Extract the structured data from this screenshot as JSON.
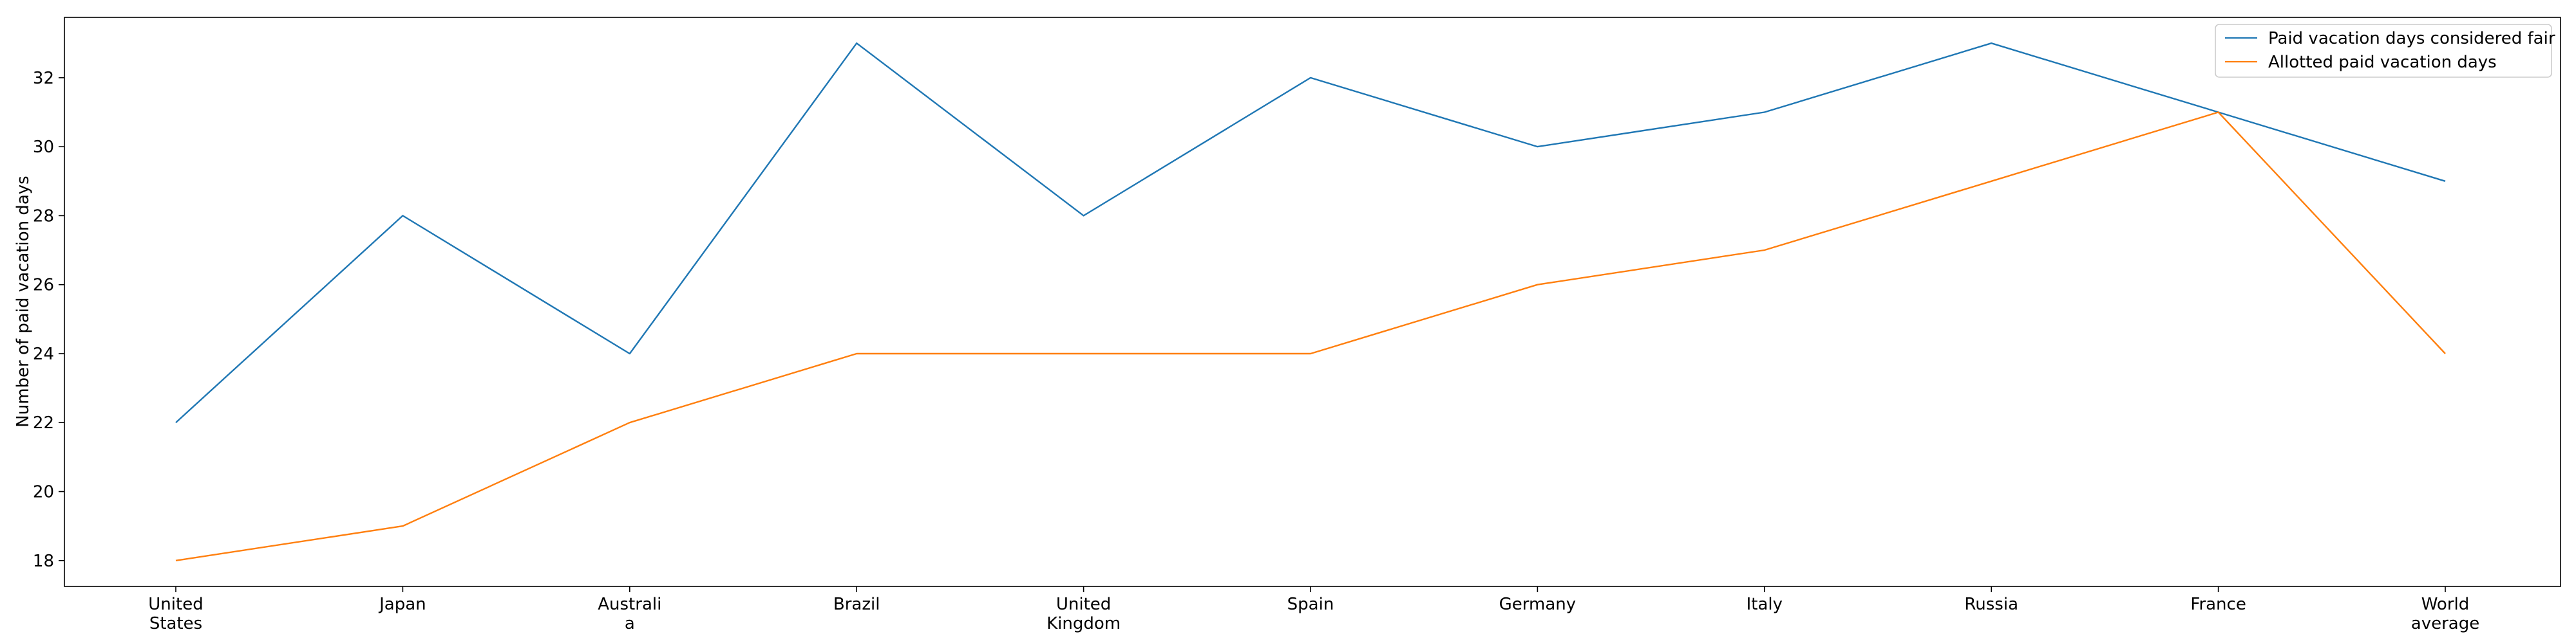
{
  "chart_data": {
    "type": "line",
    "title": "",
    "xlabel": "",
    "ylabel": "Number of paid vacation days",
    "categories": [
      "United\nStates",
      "Japan",
      "Australi\na",
      "Brazil",
      "United\nKingdom",
      "Spain",
      "Germany",
      "Italy",
      "Russia",
      "France",
      "World\naverage"
    ],
    "series": [
      {
        "name": "Paid vacation days considered fair",
        "color": "#1f77b4",
        "values": [
          22,
          28,
          24,
          33,
          28,
          32,
          30,
          31,
          33,
          31,
          29
        ]
      },
      {
        "name": "Allotted paid vacation days",
        "color": "#ff7f0e",
        "values": [
          18,
          19,
          22,
          24,
          24,
          24,
          26,
          27,
          29,
          31,
          24
        ]
      }
    ],
    "ylim": [
      17.25,
      33.75
    ],
    "yticks": [
      18,
      20,
      22,
      24,
      26,
      28,
      30,
      32
    ],
    "grid": false,
    "legend_position": "top-right"
  }
}
